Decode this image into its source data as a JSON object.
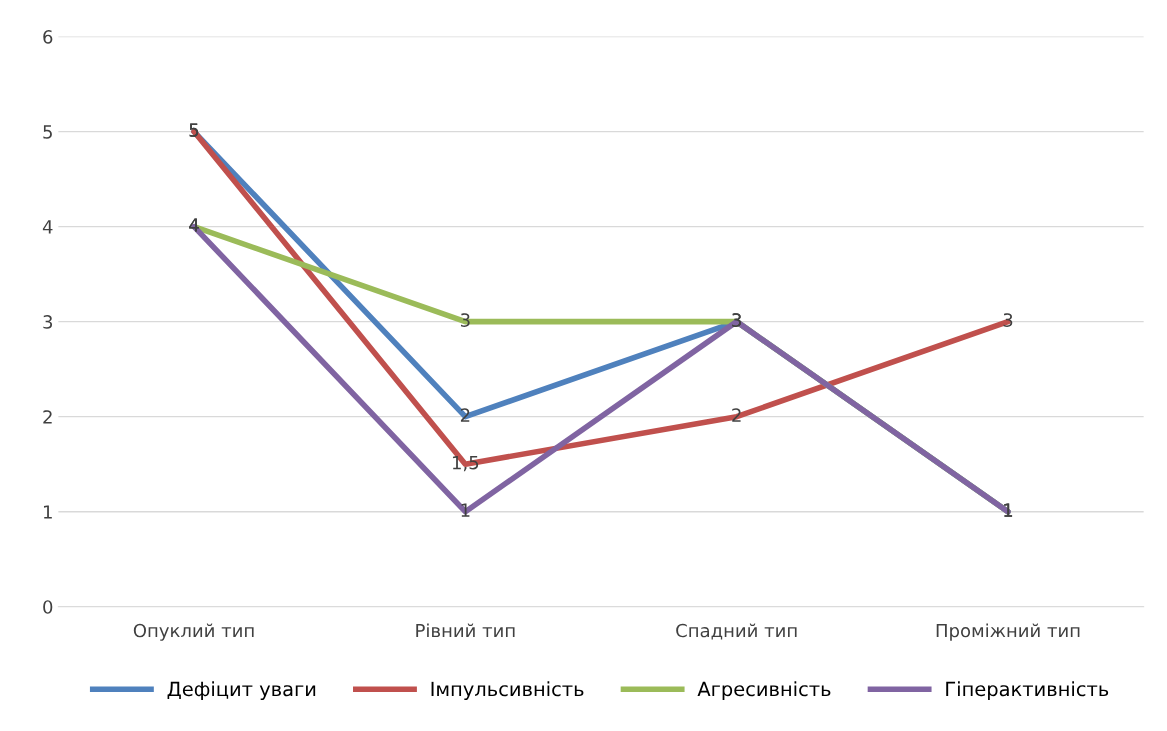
{
  "chart_data": {
    "type": "line",
    "categories": [
      "Опуклий тип",
      "Рівний тип",
      "Спадний тип",
      "Проміжний тип"
    ],
    "series": [
      {
        "name": "Дефіцит уваги",
        "color": "#4f81bd",
        "values": [
          5,
          2,
          3,
          1
        ],
        "value_labels": [
          "5",
          "2",
          "3",
          "1"
        ]
      },
      {
        "name": "Імпульсивність",
        "color": "#c0504d",
        "values": [
          5,
          1.5,
          2,
          3
        ],
        "value_labels": [
          "5",
          "1,5",
          "2",
          "3"
        ]
      },
      {
        "name": "Агресивність",
        "color": "#9bbb59",
        "values": [
          4,
          3,
          3,
          1
        ],
        "value_labels": [
          "4",
          "3",
          null,
          null
        ]
      },
      {
        "name": "Гіперактивність",
        "color": "#8064a2",
        "values": [
          4,
          1,
          3,
          1
        ],
        "value_labels": [
          "4",
          "1",
          "3",
          "1"
        ]
      }
    ],
    "ylim": [
      0,
      6
    ],
    "yticks": [
      0,
      1,
      2,
      3,
      4,
      5,
      6
    ],
    "grid": "y",
    "legend": "bottom",
    "marker": "none",
    "line_style": "solid"
  }
}
